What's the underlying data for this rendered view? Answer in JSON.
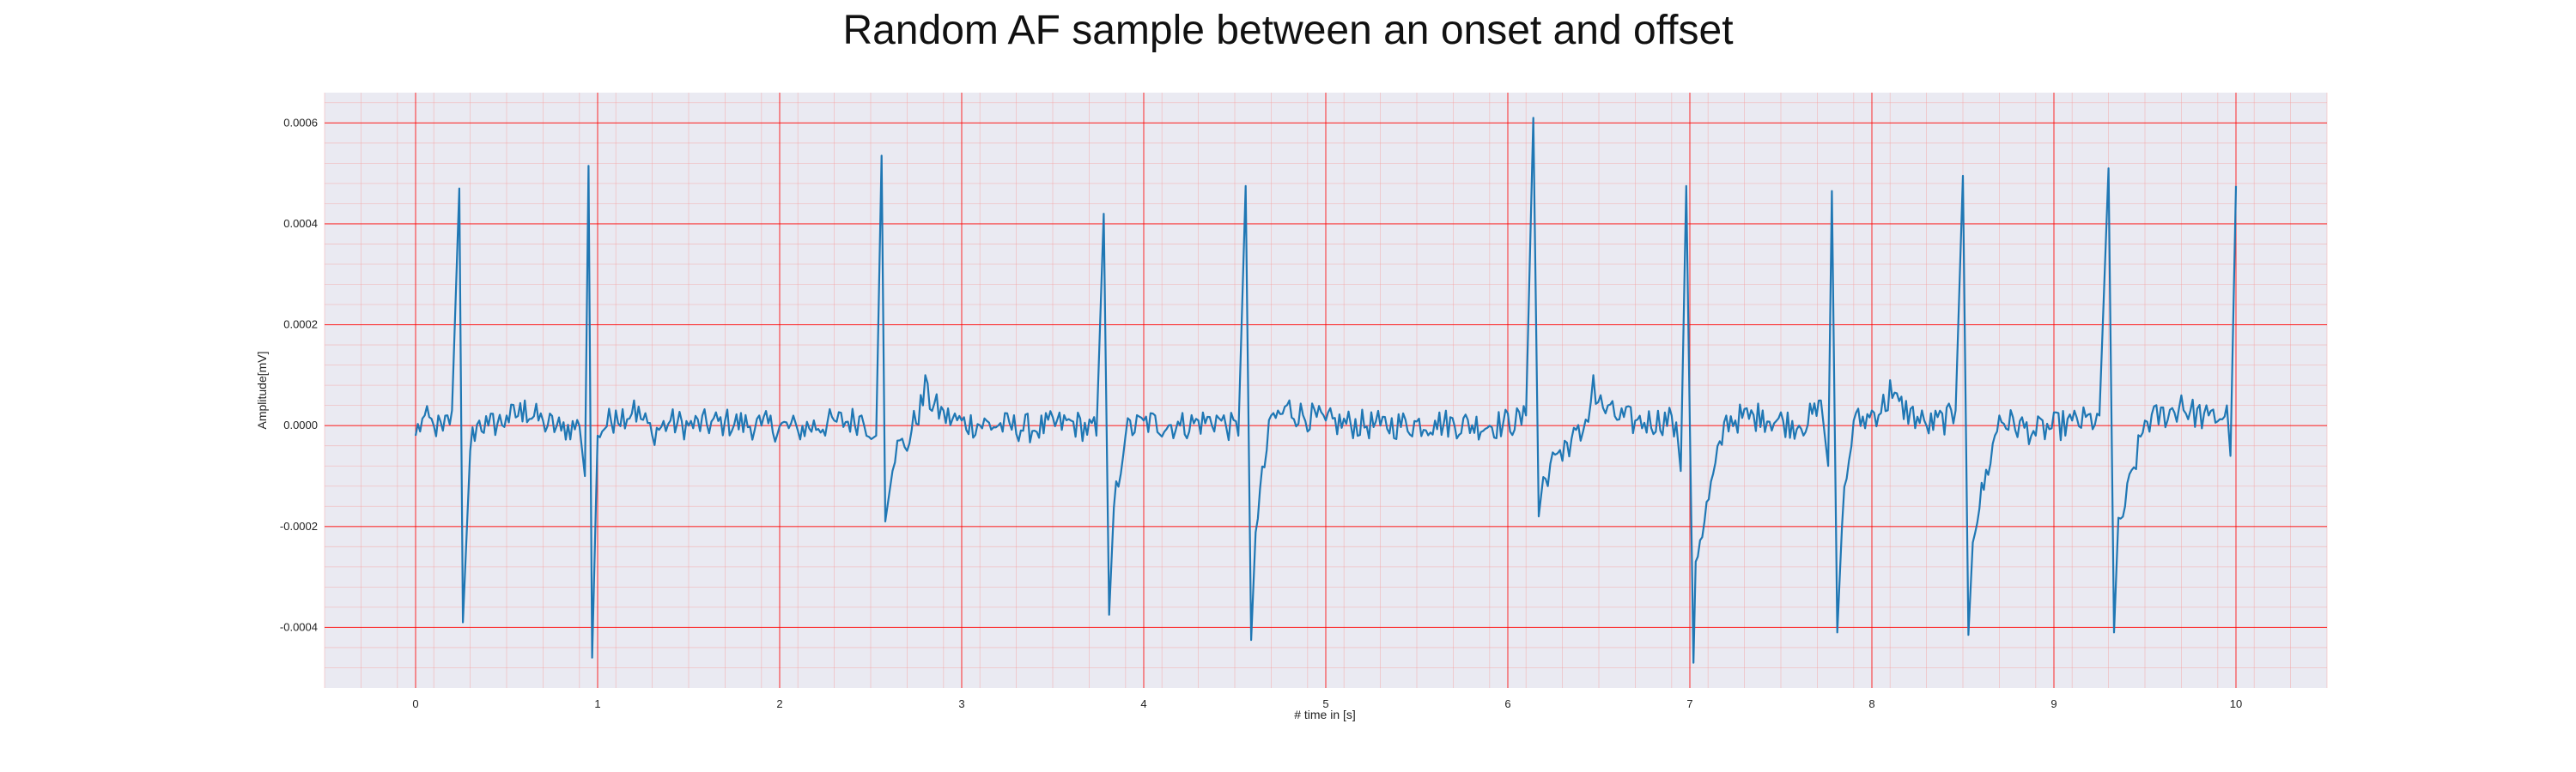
{
  "chart_data": {
    "type": "line",
    "title": "Random AF sample between an onset and offset",
    "xlabel": "# time in [s]",
    "ylabel": "Amplitude[mV]",
    "xlim": [
      -0.5,
      10.5
    ],
    "ylim": [
      -0.00052,
      0.00066
    ],
    "xticks": [
      0,
      1,
      2,
      3,
      4,
      5,
      6,
      7,
      8,
      9,
      10
    ],
    "xtick_labels": [
      "0",
      "1",
      "2",
      "3",
      "4",
      "5",
      "6",
      "7",
      "8",
      "9",
      "10"
    ],
    "yticks": [
      -0.0004,
      -0.0002,
      0,
      0.0002,
      0.0004,
      0.0006
    ],
    "ytick_labels": [
      "-0.0004",
      "-0.0002",
      "0.0000",
      "0.0002",
      "0.0004",
      "0.0006"
    ],
    "grid": true,
    "minor_grid": true,
    "legend": "none",
    "colors": {
      "line": "#1f77b4",
      "background": "#eaeaf2",
      "major_grid": "#ff0000",
      "minor_grid": "#f4a0a0"
    },
    "qrs_times_s": [
      0.24,
      0.95,
      2.56,
      3.78,
      4.56,
      6.14,
      6.98,
      7.78,
      8.5,
      9.3,
      10.0
    ],
    "r_peaks_mV": [
      0.00047,
      0.000515,
      0.000535,
      0.00042,
      0.000475,
      0.00061,
      0.000475,
      0.000465,
      0.000495,
      0.00051,
      0.000475
    ],
    "s_troughs_mV": [
      -0.00039,
      -0.00046,
      -0.00019,
      -0.000375,
      -0.000425,
      -0.00018,
      -0.00047,
      -0.00041,
      -0.000415,
      -0.00041,
      -6e-05
    ],
    "series": [
      {
        "x": [
          0.0,
          0.05,
          0.1,
          0.15,
          0.2,
          0.24,
          0.26,
          0.3,
          0.35,
          0.4,
          0.5,
          0.6,
          0.7,
          0.8,
          0.9,
          0.93,
          0.95,
          0.97,
          1.0,
          1.1,
          1.2,
          1.3,
          1.4,
          1.5,
          1.7,
          1.9,
          2.1,
          2.3,
          2.45,
          2.53,
          2.56,
          2.58,
          2.62,
          2.7,
          2.8,
          2.9,
          3.0,
          3.2,
          3.4,
          3.6,
          3.74,
          3.78,
          3.81,
          3.9,
          4.0,
          4.2,
          4.4,
          4.52,
          4.56,
          4.59,
          4.7,
          4.8,
          5.0,
          5.3,
          5.6,
          5.9,
          6.1,
          6.14,
          6.17,
          6.22,
          6.3,
          6.4,
          6.47,
          6.55,
          6.7,
          6.9,
          6.95,
          6.98,
          7.02,
          7.2,
          7.4,
          7.6,
          7.72,
          7.76,
          7.78,
          7.81,
          7.9,
          8.0,
          8.1,
          8.3,
          8.46,
          8.5,
          8.53,
          8.7,
          8.9,
          9.1,
          9.25,
          9.3,
          9.33,
          9.5,
          9.7,
          9.85,
          9.95,
          9.97,
          10.0
        ],
        "y": [
          -2e-05,
          2e-05,
          0.0,
          -1e-05,
          3e-05,
          0.00047,
          -0.00039,
          -5e-05,
          1e-05,
          0.0,
          2e-05,
          5e-05,
          1e-05,
          -1e-05,
          0.0,
          -0.0001,
          0.000515,
          -0.00046,
          -2e-05,
          3e-05,
          5e-05,
          -2e-05,
          1e-05,
          0.0,
          1e-05,
          0.0,
          -1e-05,
          1e-05,
          2e-05,
          -2e-05,
          0.000535,
          -0.00019,
          -9e-05,
          -5e-05,
          0.0001,
          3e-05,
          1e-05,
          0.0,
          -1e-05,
          1e-05,
          -2e-05,
          0.00042,
          -0.000375,
          -2e-05,
          1e-05,
          0.0,
          2e-05,
          -2e-05,
          0.000475,
          -0.000425,
          2e-05,
          5e-05,
          1e-05,
          0.0,
          1e-05,
          0.0,
          2e-05,
          0.00061,
          -0.00018,
          -0.00012,
          -7e-05,
          -3e-05,
          0.0001,
          4e-05,
          1e-05,
          2e-05,
          -9e-05,
          0.000475,
          -0.00047,
          2e-05,
          3e-05,
          0.0,
          5e-05,
          -8e-05,
          0.000465,
          -0.00041,
          1e-05,
          3e-05,
          9e-05,
          0.0,
          3e-05,
          0.000495,
          -0.000415,
          2e-05,
          -2e-05,
          1e-05,
          2e-05,
          0.00051,
          -0.00041,
          1e-05,
          6e-05,
          2e-05,
          4e-05,
          -6e-05,
          0.000475
        ]
      }
    ]
  }
}
